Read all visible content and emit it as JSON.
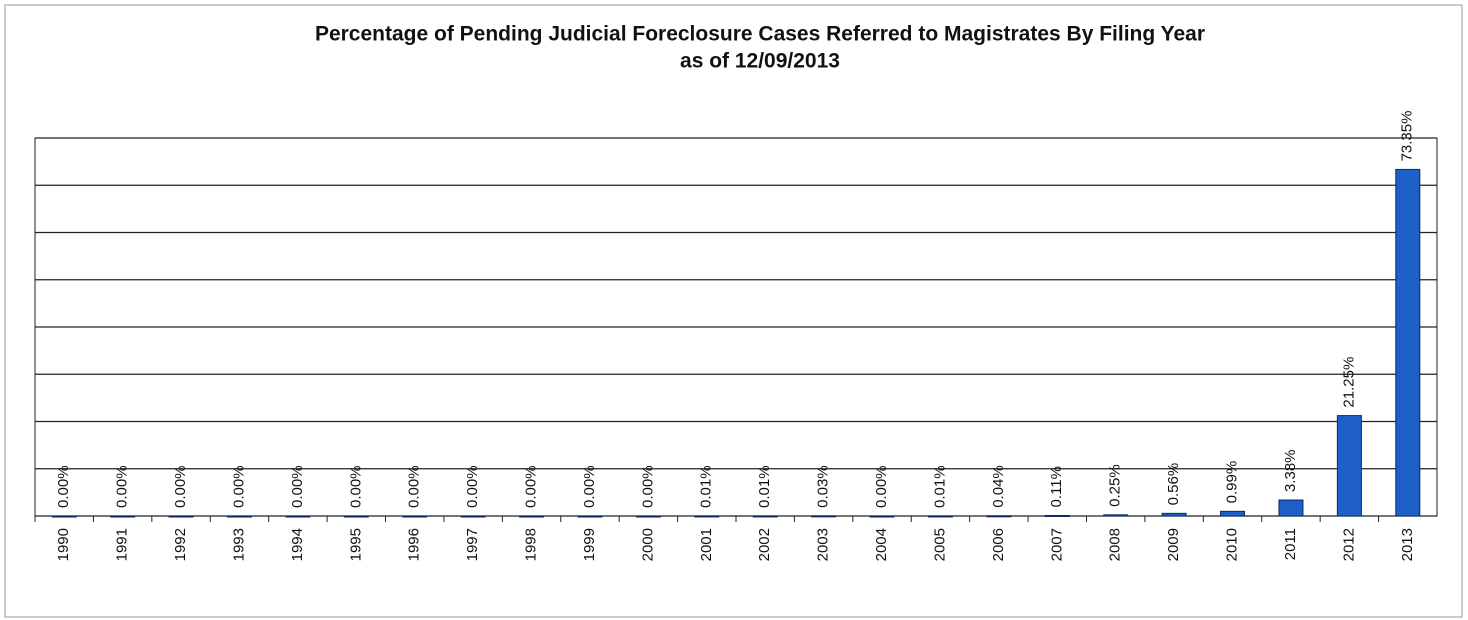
{
  "chart_data": {
    "type": "bar",
    "title": "Percentage of Pending Judicial Foreclosure Cases Referred to Magistrates By Filing Year",
    "subtitle": "as of 12/09/2013",
    "categories": [
      "1990",
      "1991",
      "1992",
      "1993",
      "1994",
      "1995",
      "1996",
      "1997",
      "1998",
      "1999",
      "2000",
      "2001",
      "2002",
      "2003",
      "2004",
      "2005",
      "2006",
      "2007",
      "2008",
      "2009",
      "2010",
      "2011",
      "2012",
      "2013"
    ],
    "values": [
      0,
      0,
      0,
      0,
      0,
      0,
      0,
      0,
      0,
      0,
      0,
      0.01,
      0.01,
      0.03,
      0,
      0.01,
      0.04,
      0.11,
      0.25,
      0.56,
      0.99,
      3.38,
      21.25,
      73.35
    ],
    "value_labels": [
      "0.00%",
      "0.00%",
      "0.00%",
      "0.00%",
      "0.00%",
      "0.00%",
      "0.00%",
      "0.00%",
      "0.00%",
      "0.00%",
      "0.00%",
      "0.01%",
      "0.01%",
      "0.03%",
      "0.00%",
      "0.01%",
      "0.04%",
      "0.11%",
      "0.25%",
      "0.56%",
      "0.99%",
      "3.38%",
      "21.25%",
      "73.35%"
    ],
    "color": "#1f5fc8",
    "ylim": [
      0,
      80
    ],
    "yticks": [
      0,
      10,
      20,
      30,
      40,
      50,
      60,
      70,
      80
    ],
    "grid": true
  }
}
